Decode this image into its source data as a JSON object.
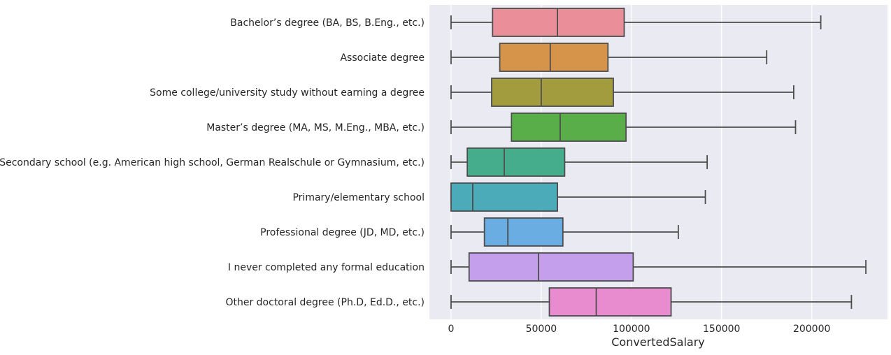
{
  "chart_data": {
    "type": "box",
    "orientation": "horizontal",
    "title": "",
    "xlabel": "ConvertedSalary",
    "ylabel": "",
    "xlim": [
      -12000,
      242000
    ],
    "xticks": [
      0,
      50000,
      100000,
      150000,
      200000
    ],
    "xtick_labels": [
      "0",
      "50000",
      "100000",
      "150000",
      "200000"
    ],
    "grid": "x-only",
    "style": "seaborn-darkgrid",
    "background_color": "#EAEAF2",
    "box_edge_color": "#4D4D4D",
    "categories": [
      {
        "label": "Bachelor’s degree (BA, BS, B.Eng., etc.)",
        "color": "#EA8E9A",
        "whisker_low": 0,
        "q1": 23000,
        "median": 59000,
        "q3": 96000,
        "whisker_high": 205000
      },
      {
        "label": "Associate degree",
        "color": "#D6944A",
        "whisker_low": 0,
        "q1": 27000,
        "median": 55000,
        "q3": 87000,
        "whisker_high": 175000
      },
      {
        "label": "Some college/university study without earning a degree",
        "color": "#A39C3E",
        "whisker_low": 0,
        "q1": 22500,
        "median": 50000,
        "q3": 90000,
        "whisker_high": 190000
      },
      {
        "label": "Master’s degree (MA, MS, M.Eng., MBA, etc.)",
        "color": "#5AAE4A",
        "whisker_low": 0,
        "q1": 33500,
        "median": 60500,
        "q3": 97000,
        "whisker_high": 191000
      },
      {
        "label": "Secondary school (e.g. American high school, German Realschule or Gymnasium, etc.)",
        "color": "#46AD8C",
        "whisker_low": 0,
        "q1": 9000,
        "median": 29500,
        "q3": 63000,
        "whisker_high": 142000
      },
      {
        "label": "Primary/elementary school",
        "color": "#4BABB8",
        "whisker_low": 0,
        "q1": 0,
        "median": 12000,
        "q3": 59000,
        "whisker_high": 141000
      },
      {
        "label": "Professional degree (JD, MD, etc.)",
        "color": "#69ADE2",
        "whisker_low": 0,
        "q1": 18500,
        "median": 31500,
        "q3": 62000,
        "whisker_high": 126000
      },
      {
        "label": "I never completed any formal education",
        "color": "#C49FEC",
        "whisker_low": 0,
        "q1": 10000,
        "median": 48500,
        "q3": 101000,
        "whisker_high": 230000
      },
      {
        "label": "Other doctoral degree (Ph.D, Ed.D., etc.)",
        "color": "#E88CCF",
        "whisker_low": 0,
        "q1": 54500,
        "median": 80500,
        "q3": 122000,
        "whisker_high": 222000
      }
    ]
  }
}
